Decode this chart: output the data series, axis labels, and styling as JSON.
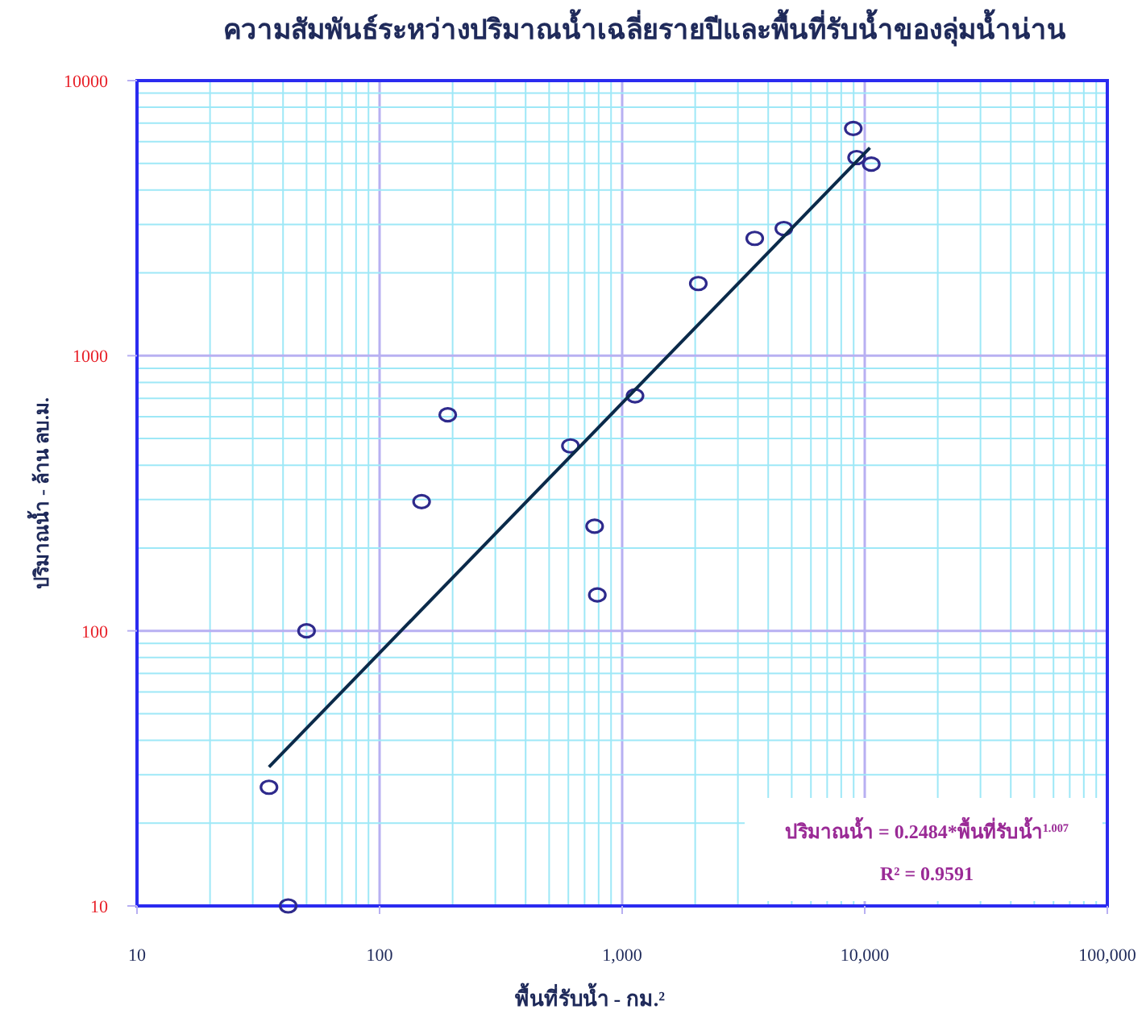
{
  "chart_data": {
    "type": "scatter",
    "title": "ความสัมพันธ์ระหว่างปริมาณน้ำเฉลี่ยรายปีและพื้นที่รับน้ำของลุ่มน้ำน่าน",
    "xlabel": "พื้นที่รับน้ำ - กม.²",
    "ylabel": "ปริมาณน้ำ - ล้าน ลบ.ม.",
    "log": "xy",
    "grid": true,
    "marker": "circle",
    "xlim": [
      10,
      100000
    ],
    "ylim": [
      10,
      10000
    ],
    "xticks": [
      10,
      {
        "value": 20,
        "label": null
      },
      {
        "value": 30,
        "label": null
      },
      {
        "value": 40,
        "label": null
      },
      {
        "value": 50,
        "label": null
      },
      {
        "value": 60,
        "label": null
      },
      {
        "value": 70,
        "label": null
      },
      {
        "value": 80,
        "label": null
      },
      {
        "value": 90,
        "label": null
      },
      100,
      {
        "value": 200,
        "label": null
      },
      {
        "value": 300,
        "label": null
      },
      {
        "value": 400,
        "label": null
      },
      {
        "value": 500,
        "label": null
      },
      {
        "value": 600,
        "label": null
      },
      {
        "value": 700,
        "label": null
      },
      {
        "value": 800,
        "label": null
      },
      {
        "value": 900,
        "label": null
      },
      {
        "value": 1000,
        "label": "1,000"
      },
      {
        "value": 2000,
        "label": null
      },
      {
        "value": 3000,
        "label": null
      },
      {
        "value": 4000,
        "label": null
      },
      {
        "value": 5000,
        "label": null
      },
      {
        "value": 6000,
        "label": null
      },
      {
        "value": 7000,
        "label": null
      },
      {
        "value": 8000,
        "label": null
      },
      {
        "value": 9000,
        "label": null
      },
      {
        "value": 10000,
        "label": "10,000"
      },
      {
        "value": 20000,
        "label": null
      },
      {
        "value": 30000,
        "label": null
      },
      {
        "value": 40000,
        "label": null
      },
      {
        "value": 50000,
        "label": null
      },
      {
        "value": 60000,
        "label": null
      },
      {
        "value": 70000,
        "label": null
      },
      {
        "value": 80000,
        "label": null
      },
      {
        "value": 90000,
        "label": null
      },
      {
        "value": 100000,
        "label": "100,000"
      }
    ],
    "yticks": [
      10,
      {
        "value": 20,
        "label": null
      },
      {
        "value": 30,
        "label": null
      },
      {
        "value": 40,
        "label": null
      },
      {
        "value": 50,
        "label": null
      },
      {
        "value": 60,
        "label": null
      },
      {
        "value": 70,
        "label": null
      },
      {
        "value": 80,
        "label": null
      },
      {
        "value": 90,
        "label": null
      },
      100,
      {
        "value": 200,
        "label": null
      },
      {
        "value": 300,
        "label": null
      },
      {
        "value": 400,
        "label": null
      },
      {
        "value": 500,
        "label": null
      },
      {
        "value": 600,
        "label": null
      },
      {
        "value": 700,
        "label": null
      },
      {
        "value": 800,
        "label": null
      },
      {
        "value": 900,
        "label": null
      },
      1000,
      {
        "value": 2000,
        "label": null
      },
      {
        "value": 3000,
        "label": null
      },
      {
        "value": 4000,
        "label": null
      },
      {
        "value": 5000,
        "label": null
      },
      {
        "value": 6000,
        "label": null
      },
      {
        "value": 7000,
        "label": null
      },
      {
        "value": 8000,
        "label": null
      },
      {
        "value": 9000,
        "label": null
      },
      10000
    ],
    "series": [
      {
        "color": "#2e2a8c",
        "x": [
          35,
          42,
          50,
          149,
          191,
          612,
          770,
          790,
          1130,
          2060,
          3520,
          4640,
          8970,
          9260,
          10640
        ],
        "values": [
          27,
          10,
          100,
          295,
          610,
          470,
          240,
          135,
          715,
          1830,
          2670,
          2900,
          6700,
          5250,
          4970
        ]
      },
      {
        "type": "line",
        "color": "#0b2a4a",
        "marker": "none",
        "x": [
          35,
          10500
        ],
        "values": [
          32,
          5700
        ]
      }
    ],
    "annotations": [
      "ปริมาณน้ำ = 0.2484*พื้นที่รับน้ำ$^{1.007}$",
      "R² = 0.9591"
    ]
  }
}
